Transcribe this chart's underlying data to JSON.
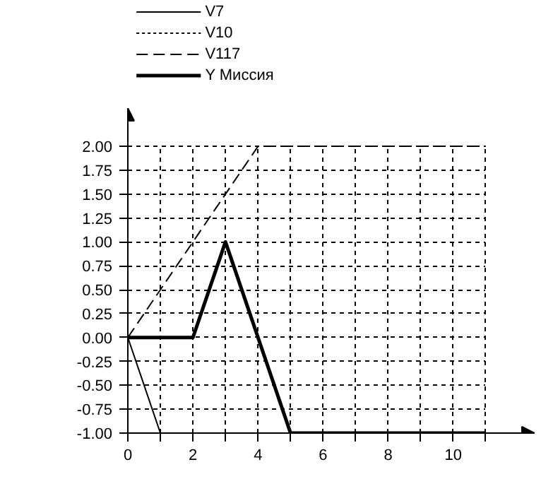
{
  "chart_data": {
    "type": "line",
    "xlim": [
      0,
      12.5
    ],
    "ylim": [
      -1,
      2.4
    ],
    "xticks": [
      0,
      {
        "value": 1,
        "label": null
      },
      2,
      {
        "value": 3,
        "label": null
      },
      4,
      {
        "value": 5,
        "label": null
      },
      6,
      {
        "value": 7,
        "label": null
      },
      8,
      {
        "value": 9,
        "label": null
      },
      10,
      {
        "value": 11,
        "label": null
      }
    ],
    "yticks": [
      {
        "value": -1,
        "label": "-1.00"
      },
      {
        "value": -0.75,
        "label": "-0.75"
      },
      {
        "value": -0.5,
        "label": "-0.50"
      },
      {
        "value": -0.25,
        "label": "-0.25"
      },
      {
        "value": 0,
        "label": "0.00"
      },
      {
        "value": 0.25,
        "label": "0.25"
      },
      {
        "value": 0.5,
        "label": "0.50"
      },
      {
        "value": 0.75,
        "label": "0.75"
      },
      {
        "value": 1,
        "label": "1.00"
      },
      {
        "value": 1.25,
        "label": "1.25"
      },
      {
        "value": 1.5,
        "label": "1.50"
      },
      {
        "value": 1.75,
        "label": "1.75"
      },
      {
        "value": 2,
        "label": "2.00"
      }
    ],
    "grid": true,
    "legend": "top left",
    "series": [
      {
        "name": "V7",
        "color": "#000000",
        "line_style": "solid",
        "x": [
          0,
          1
        ],
        "values": [
          0,
          -1
        ]
      },
      {
        "name": "V10",
        "color": "#000000",
        "line_style": "dotted",
        "type": "line"
      },
      {
        "name": "V117",
        "color": "#000000",
        "line_style": "dashed",
        "x": [
          0,
          4,
          11
        ],
        "values": [
          0,
          2,
          2
        ]
      },
      {
        "name": "Y Миссия",
        "color": "#000000",
        "line_style": "solid",
        "x": [
          0,
          2,
          3,
          5,
          11
        ],
        "values": [
          0,
          0,
          1,
          -1,
          -1
        ]
      }
    ]
  }
}
